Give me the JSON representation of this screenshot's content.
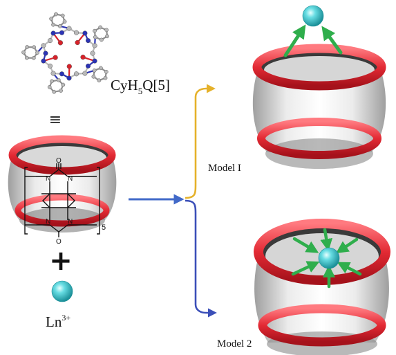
{
  "labels": {
    "macrocycle": "CyH",
    "macrocycle_sub": "5",
    "macrocycle_tail": "Q[5]",
    "equivalence": "≡",
    "repeat_n": "5",
    "plus": "+",
    "ion_base": "Ln",
    "ion_charge": "3+",
    "model1": "Model I",
    "model2": "Model 2"
  },
  "colors": {
    "ring_red": "#e8313a",
    "barrel_gray": "#c9c9c9",
    "ion_cyan": "#4fd2d9",
    "arrow_green": "#2fae4c",
    "arrow_blue": "#4169c8",
    "branch_yellow": "#e5b12a",
    "branch_purple": "#7a56b8",
    "branch_blue": "#3b4fb8"
  },
  "atoms_legend": {
    "carbon": "#b9b9b9",
    "nitrogen": "#2b33b5",
    "oxygen": "#d8222a"
  }
}
